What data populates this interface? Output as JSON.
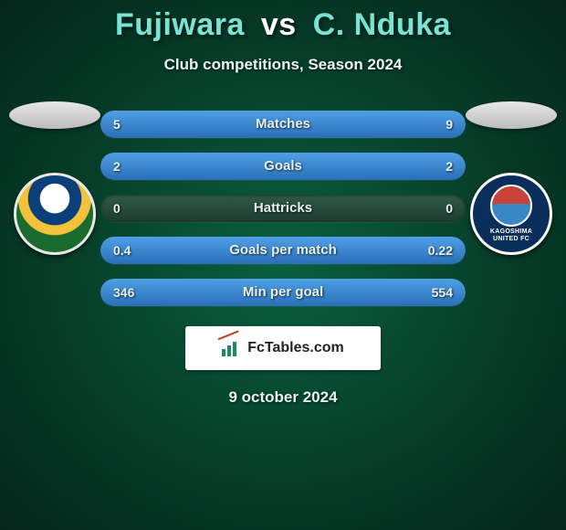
{
  "title": {
    "player1": "Fujiwara",
    "vs": "vs",
    "player2": "C. Nduka"
  },
  "subtitle": "Club competitions, Season 2024",
  "stats": [
    {
      "label": "Matches",
      "left_val": "5",
      "right_val": "9",
      "left_pct": 36,
      "right_pct": 64
    },
    {
      "label": "Goals",
      "left_val": "2",
      "right_val": "2",
      "left_pct": 50,
      "right_pct": 50
    },
    {
      "label": "Hattricks",
      "left_val": "0",
      "right_val": "0",
      "left_pct": 0,
      "right_pct": 0
    },
    {
      "label": "Goals per match",
      "left_val": "0.4",
      "right_val": "0.22",
      "left_pct": 64,
      "right_pct": 36
    },
    {
      "label": "Min per goal",
      "left_val": "346",
      "right_val": "554",
      "left_pct": 38,
      "right_pct": 62
    }
  ],
  "badges": {
    "left_alt": "EFC",
    "right_top": "KAGOSHIMA",
    "right_bottom": "UNITED FC"
  },
  "brand": "FcTables.com",
  "date": "9 october 2024",
  "colors": {
    "accent_text": "#7ae3d3",
    "bar_fill_top": "#4fa0e6",
    "bar_fill_bottom": "#2a6fb8",
    "bar_track_top": "#2f5a49",
    "bar_track_bottom": "#1e3b30",
    "bg_center": "#0a6040",
    "bg_edge": "#04261a"
  }
}
